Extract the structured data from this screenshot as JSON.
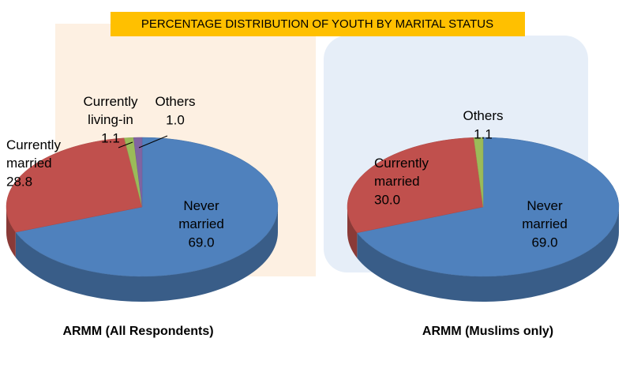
{
  "title": "PERCENTAGE DISTRIBUTION OF YOUTH BY MARITAL STATUS",
  "chart_data": [
    {
      "type": "pie",
      "title": "ARMM (All Respondents)",
      "categories": [
        "Never married",
        "Currently married",
        "Currently living-in",
        "Others"
      ],
      "values": [
        69.0,
        28.8,
        1.1,
        1.0
      ],
      "value_labels": [
        "69.0",
        "28.8",
        "1.1",
        "1.0"
      ],
      "colors": [
        "#4f81bd",
        "#c0504d",
        "#9bbb59",
        "#8064a2"
      ]
    },
    {
      "type": "pie",
      "title": "ARMM (Muslims only)",
      "categories": [
        "Never married",
        "Currently married",
        "Others"
      ],
      "values": [
        69.0,
        30.0,
        1.1
      ],
      "value_labels": [
        "69.0",
        "30.0",
        "1.1"
      ],
      "colors": [
        "#4f81bd",
        "#c0504d",
        "#9bbb59"
      ]
    }
  ]
}
